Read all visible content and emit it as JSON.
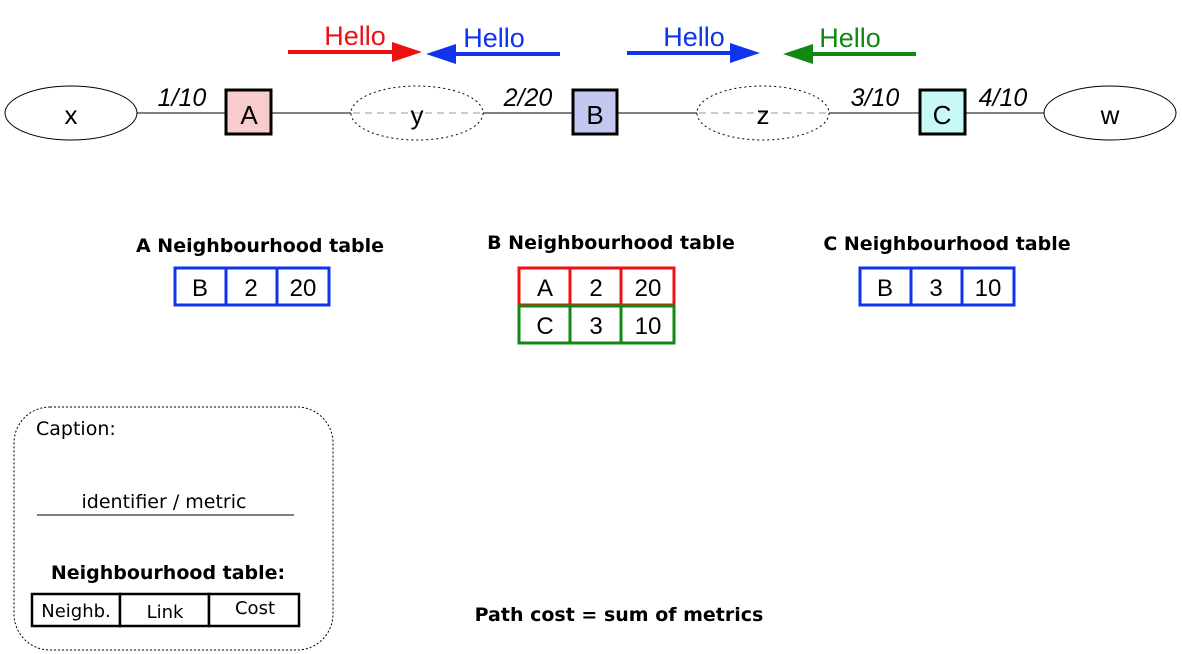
{
  "hellos": [
    {
      "label": "Hello",
      "color": "#ee1111"
    },
    {
      "label": "Hello",
      "color": "#1133ee"
    },
    {
      "label": "Hello",
      "color": "#1133ee"
    },
    {
      "label": "Hello",
      "color": "#118811"
    }
  ],
  "networks": {
    "x": "x",
    "y": "y",
    "z": "z",
    "w": "w"
  },
  "routers": {
    "A": {
      "label": "A",
      "fill": "#f8cccc"
    },
    "B": {
      "label": "B",
      "fill": "#c4c8f0"
    },
    "C": {
      "label": "C",
      "fill": "#c8f8f8"
    }
  },
  "links": {
    "l1": "1/10",
    "l2": "2/20",
    "l3": "3/10",
    "l4": "4/10"
  },
  "tables": {
    "A": {
      "title": "A Neighbourhood table",
      "rows": [
        {
          "cells": [
            "B",
            "2",
            "20"
          ],
          "color": "#1133ee"
        }
      ]
    },
    "B": {
      "title": "B Neighbourhood table",
      "rows": [
        {
          "cells": [
            "A",
            "2",
            "20"
          ],
          "color": "#ee1111"
        },
        {
          "cells": [
            "C",
            "3",
            "10"
          ],
          "color": "#118811"
        }
      ]
    },
    "C": {
      "title": "C Neighbourhood table",
      "rows": [
        {
          "cells": [
            "B",
            "3",
            "10"
          ],
          "color": "#1133ee"
        }
      ]
    }
  },
  "caption": {
    "title": "Caption:",
    "link_example": "identifier / metric",
    "table_title": "Neighbourhood table:",
    "columns": [
      "Neighb.",
      "Link",
      "Cost"
    ]
  },
  "path_cost": "Path cost = sum of metrics"
}
